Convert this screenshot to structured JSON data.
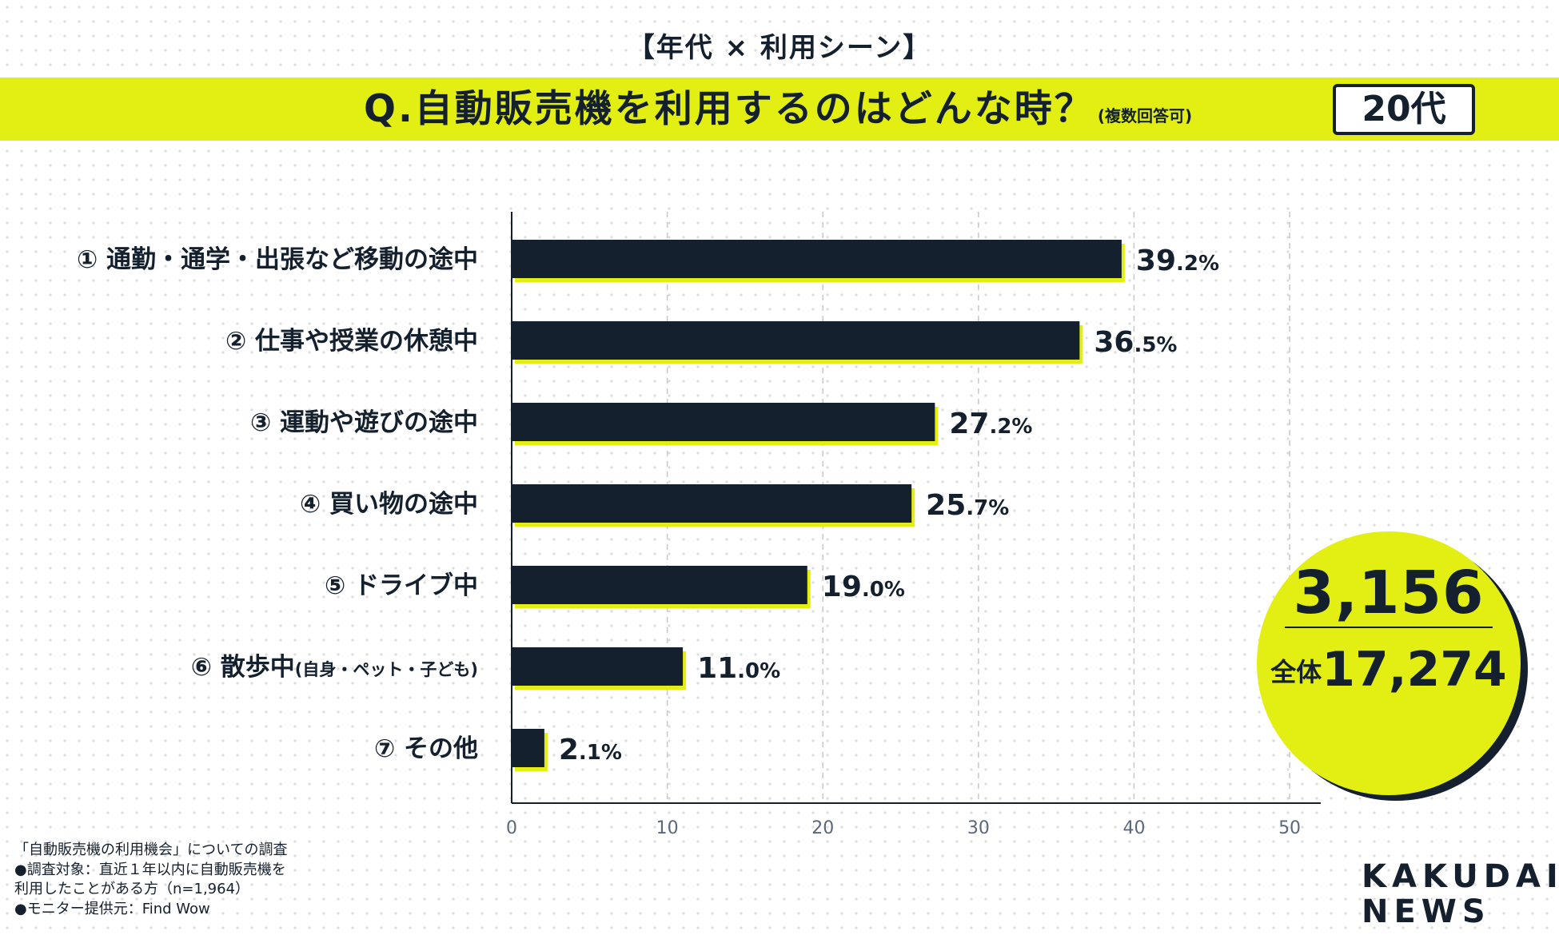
{
  "header": {
    "supertitle": "【年代 × 利用シーン】",
    "question": "Q.自動販売機を利用するのはどんな時？",
    "question_note": "(複数回答可)",
    "age_badge": "20代"
  },
  "colors": {
    "accent": "#e3ef12",
    "bar": "#14202e",
    "text": "#14202e",
    "axis_tick": "#5a6878"
  },
  "chart_data": {
    "type": "bar",
    "orientation": "horizontal",
    "title": "Q.自動販売機を利用するのはどんな時？",
    "categories": [
      {
        "num": "①",
        "label": "通勤・通学・出張など移動の途中",
        "sub": ""
      },
      {
        "num": "②",
        "label": "仕事や授業の休憩中",
        "sub": ""
      },
      {
        "num": "③",
        "label": "運動や遊びの途中",
        "sub": ""
      },
      {
        "num": "④",
        "label": "買い物の途中",
        "sub": ""
      },
      {
        "num": "⑤",
        "label": "ドライブ中",
        "sub": ""
      },
      {
        "num": "⑥",
        "label": "散歩中",
        "sub": "(自身・ペット・子ども)"
      },
      {
        "num": "⑦",
        "label": "その他",
        "sub": ""
      }
    ],
    "values": [
      39.2,
      36.5,
      27.2,
      25.7,
      19.0,
      11.0,
      2.1
    ],
    "value_labels": [
      {
        "int": "39",
        "dec": ".2%"
      },
      {
        "int": "36",
        "dec": ".5%"
      },
      {
        "int": "27",
        "dec": ".2%"
      },
      {
        "int": "25",
        "dec": ".7%"
      },
      {
        "int": "19",
        "dec": ".0%"
      },
      {
        "int": "11",
        "dec": ".0%"
      },
      {
        "int": "2",
        "dec": ".1%"
      }
    ],
    "xlim": [
      0,
      52
    ],
    "xticks": [
      0,
      10,
      20,
      30,
      40,
      50
    ],
    "xtick_labels": [
      "0",
      "10",
      "20",
      "30",
      "40",
      "50"
    ],
    "grid": true,
    "xlabel": "",
    "ylabel": ""
  },
  "sample": {
    "count": "3,156",
    "total_label": "全体",
    "total_count": "17,274"
  },
  "footnote": {
    "line1": "「自動販売機の利用機会」についての調査",
    "line2": "●調査対象：直近１年以内に自動販売機を",
    "line3": "利用したことがある方（n=1,964）",
    "line4": "●モニター提供元：Find Wow"
  },
  "logo": {
    "line1": "KAKUDAI",
    "line2": "NEWS"
  }
}
